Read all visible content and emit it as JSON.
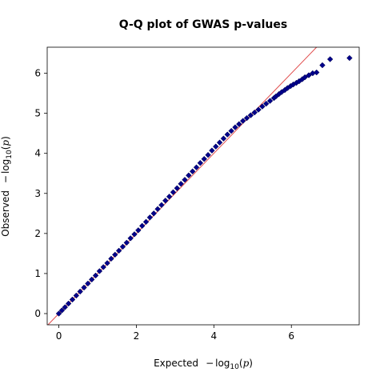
{
  "chart_data": {
    "type": "scatter",
    "title": "Q-Q plot of GWAS p-values",
    "xlabel": {
      "prefix": "Expected",
      "minus": "−",
      "log": "log",
      "sub": "10",
      "open": "(",
      "var": "p",
      "close": ")"
    },
    "ylabel": {
      "prefix": "Observed",
      "minus": "−",
      "log": "log",
      "sub": "10",
      "open": "(",
      "var": "p",
      "close": ")"
    },
    "xlim": [
      -0.3,
      7.75
    ],
    "ylim": [
      -0.28,
      6.65
    ],
    "x_ticks": [
      0,
      2,
      4,
      6
    ],
    "x_tick_labels": [
      "0",
      "2",
      "4",
      "6"
    ],
    "y_ticks": [
      0,
      1,
      2,
      3,
      4,
      5,
      6
    ],
    "y_tick_labels": [
      "0",
      "1",
      "2",
      "3",
      "4",
      "5",
      "6"
    ],
    "grid": false,
    "legend": "none",
    "marker": "diamond",
    "marker_color": "#00008b",
    "reference_line": {
      "type": "y = x",
      "color": "#e04a4a"
    },
    "series": [
      {
        "x": [
          0.0,
          0.08,
          0.16,
          0.25,
          0.35,
          0.45,
          0.55,
          0.65,
          0.75,
          0.85,
          0.95,
          1.05,
          1.15,
          1.25,
          1.35,
          1.45,
          1.55,
          1.65,
          1.75,
          1.85,
          1.95,
          2.05,
          2.15,
          2.25,
          2.35,
          2.45,
          2.55,
          2.65,
          2.75,
          2.85,
          2.95,
          3.05,
          3.15,
          3.25,
          3.35,
          3.45,
          3.55,
          3.65,
          3.75,
          3.85,
          3.95,
          4.05,
          4.15,
          4.25,
          4.35,
          4.45,
          4.55,
          4.65,
          4.75,
          4.85,
          4.95,
          5.05,
          5.15,
          5.25,
          5.35,
          5.45,
          5.55,
          5.6,
          5.68,
          5.75,
          5.83,
          5.9,
          5.98,
          6.05,
          6.13,
          6.2,
          6.28,
          6.35,
          6.45,
          6.55,
          6.65,
          6.8,
          7.0,
          7.5
        ],
        "y": [
          0.0,
          0.08,
          0.16,
          0.25,
          0.35,
          0.45,
          0.55,
          0.65,
          0.75,
          0.85,
          0.95,
          1.06,
          1.16,
          1.26,
          1.37,
          1.47,
          1.57,
          1.67,
          1.77,
          1.88,
          1.98,
          2.08,
          2.19,
          2.29,
          2.4,
          2.5,
          2.61,
          2.71,
          2.82,
          2.92,
          3.03,
          3.13,
          3.24,
          3.34,
          3.45,
          3.55,
          3.65,
          3.76,
          3.86,
          3.96,
          4.07,
          4.17,
          4.27,
          4.37,
          4.47,
          4.56,
          4.65,
          4.73,
          4.81,
          4.88,
          4.95,
          5.02,
          5.09,
          5.17,
          5.24,
          5.31,
          5.38,
          5.42,
          5.48,
          5.53,
          5.58,
          5.63,
          5.68,
          5.72,
          5.76,
          5.8,
          5.85,
          5.9,
          5.95,
          6.0,
          6.02,
          6.2,
          6.35,
          6.38
        ]
      }
    ]
  }
}
